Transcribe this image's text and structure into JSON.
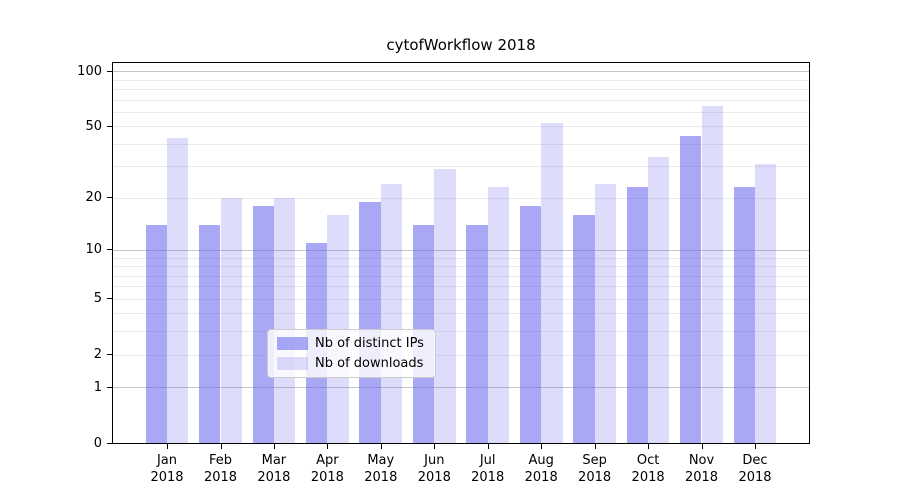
{
  "chart_data": {
    "type": "bar",
    "title": "cytofWorkflow 2018",
    "categories": [
      "Jan",
      "Feb",
      "Mar",
      "Apr",
      "May",
      "Jun",
      "Jul",
      "Aug",
      "Sep",
      "Oct",
      "Nov",
      "Dec"
    ],
    "category_year_line": "2018",
    "series": [
      {
        "name": "Nb of distinct IPs",
        "color": "#6666ee",
        "alpha": 0.57,
        "values": [
          14,
          14,
          18,
          11,
          19,
          14,
          14,
          18,
          16,
          23,
          44,
          23
        ]
      },
      {
        "name": "Nb of downloads",
        "color": "#6666ee",
        "alpha": 0.22,
        "values": [
          43,
          20,
          20,
          16,
          24,
          29,
          23,
          52,
          24,
          34,
          65,
          31
        ]
      }
    ],
    "xlabel": "",
    "ylabel": "",
    "yscale": "log1p",
    "ylim": [
      0,
      111
    ],
    "ytick_values": [
      100,
      50,
      20,
      10,
      5,
      2,
      1,
      0
    ],
    "grid_major_values": [
      1,
      10,
      100
    ],
    "grid_minor_values": [
      2,
      3,
      4,
      5,
      6,
      7,
      8,
      9,
      20,
      30,
      40,
      50,
      60,
      70,
      80,
      90
    ],
    "grid": true,
    "legend_position": "lower center"
  },
  "colors": {
    "grid_major": "#c6c6c6",
    "grid_minor": "#ebebeb",
    "axis": "#000000",
    "legend_border": "#cccccc"
  }
}
